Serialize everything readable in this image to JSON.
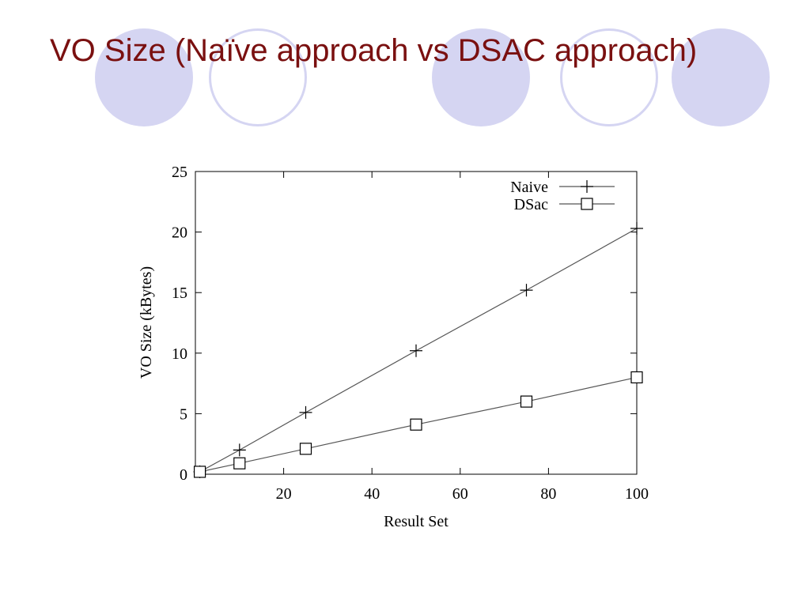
{
  "slide": {
    "title": "VO Size (Naïve approach vs DSAC approach)",
    "title_color": "#7a1010",
    "decoration_color": "#d5d5f2"
  },
  "chart_data": {
    "type": "line",
    "xlabel": "Result Set",
    "ylabel": "VO Size (kBytes)",
    "xlim": [
      0,
      100
    ],
    "ylim": [
      0,
      25
    ],
    "xticks": [
      20,
      40,
      60,
      80,
      100
    ],
    "yticks": [
      0,
      5,
      10,
      15,
      20,
      25
    ],
    "grid": false,
    "legend_position": "top-right",
    "series": [
      {
        "name": "Naive",
        "marker": "plus",
        "x": [
          1,
          10,
          25,
          50,
          75,
          100
        ],
        "y": [
          0.2,
          2.0,
          5.1,
          10.2,
          15.2,
          20.3
        ]
      },
      {
        "name": "DSac",
        "marker": "square",
        "x": [
          1,
          10,
          25,
          50,
          75,
          100
        ],
        "y": [
          0.2,
          0.9,
          2.1,
          4.1,
          6.0,
          8.0
        ]
      }
    ]
  }
}
